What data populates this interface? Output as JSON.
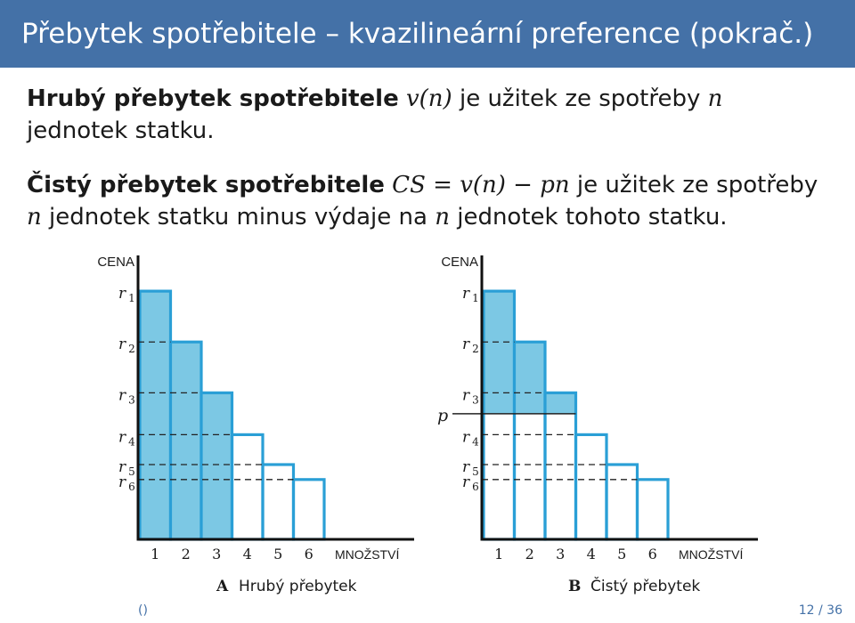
{
  "slide": {
    "title": "Přebytek spotřebitele – kvazilineární preference (pokrač.)"
  },
  "para1": {
    "term": "Hrubý přebytek spotřebitele",
    "formula": "v(n)",
    "text_a": " je užitek ze spotřeby ",
    "n": "n",
    "text_b": " jednotek statku."
  },
  "para2": {
    "term": "Čistý přebytek spotřebitele",
    "formula": "CS = v(n) − pn",
    "text_a": " je užitek ze spotřeby ",
    "n1": "n",
    "text_b": " jednotek statku minus výdaje na ",
    "n2": "n",
    "text_c": " jednotek tohoto statku."
  },
  "colors": {
    "header": "#4471a7",
    "bar_fill": "#7cc8e4",
    "bar_stroke": "#2a9fd6"
  },
  "chart_data": [
    {
      "type": "bar",
      "panel": "A",
      "caption": "Hrubý přebytek",
      "ylabel": "CENA",
      "xlabel": "MNOŽSTVÍ",
      "categories": [
        "1",
        "2",
        "3",
        "4",
        "5",
        "6"
      ],
      "price_labels": [
        "r1",
        "r2",
        "r3",
        "r4",
        "r5",
        "r6"
      ],
      "values": [
        8.3,
        6.6,
        4.9,
        3.5,
        2.5,
        2.0
      ],
      "shaded_units": [
        1,
        2,
        3
      ],
      "shaded_region": "full bars"
    },
    {
      "type": "bar",
      "panel": "B",
      "caption": "Čistý přebytek",
      "ylabel": "CENA",
      "xlabel": "MNOŽSTVÍ",
      "categories": [
        "1",
        "2",
        "3",
        "4",
        "5",
        "6"
      ],
      "price_labels": [
        "r1",
        "r2",
        "r3",
        "r4",
        "r5",
        "r6"
      ],
      "values": [
        8.3,
        6.6,
        4.9,
        3.5,
        2.5,
        2.0
      ],
      "price_line_label": "p",
      "price_line_value": 4.2,
      "shaded_units": [
        1,
        2,
        3
      ],
      "shaded_region": "above p"
    }
  ],
  "footer": {
    "left": "()",
    "page": "12",
    "sep": "/",
    "total": "36"
  }
}
